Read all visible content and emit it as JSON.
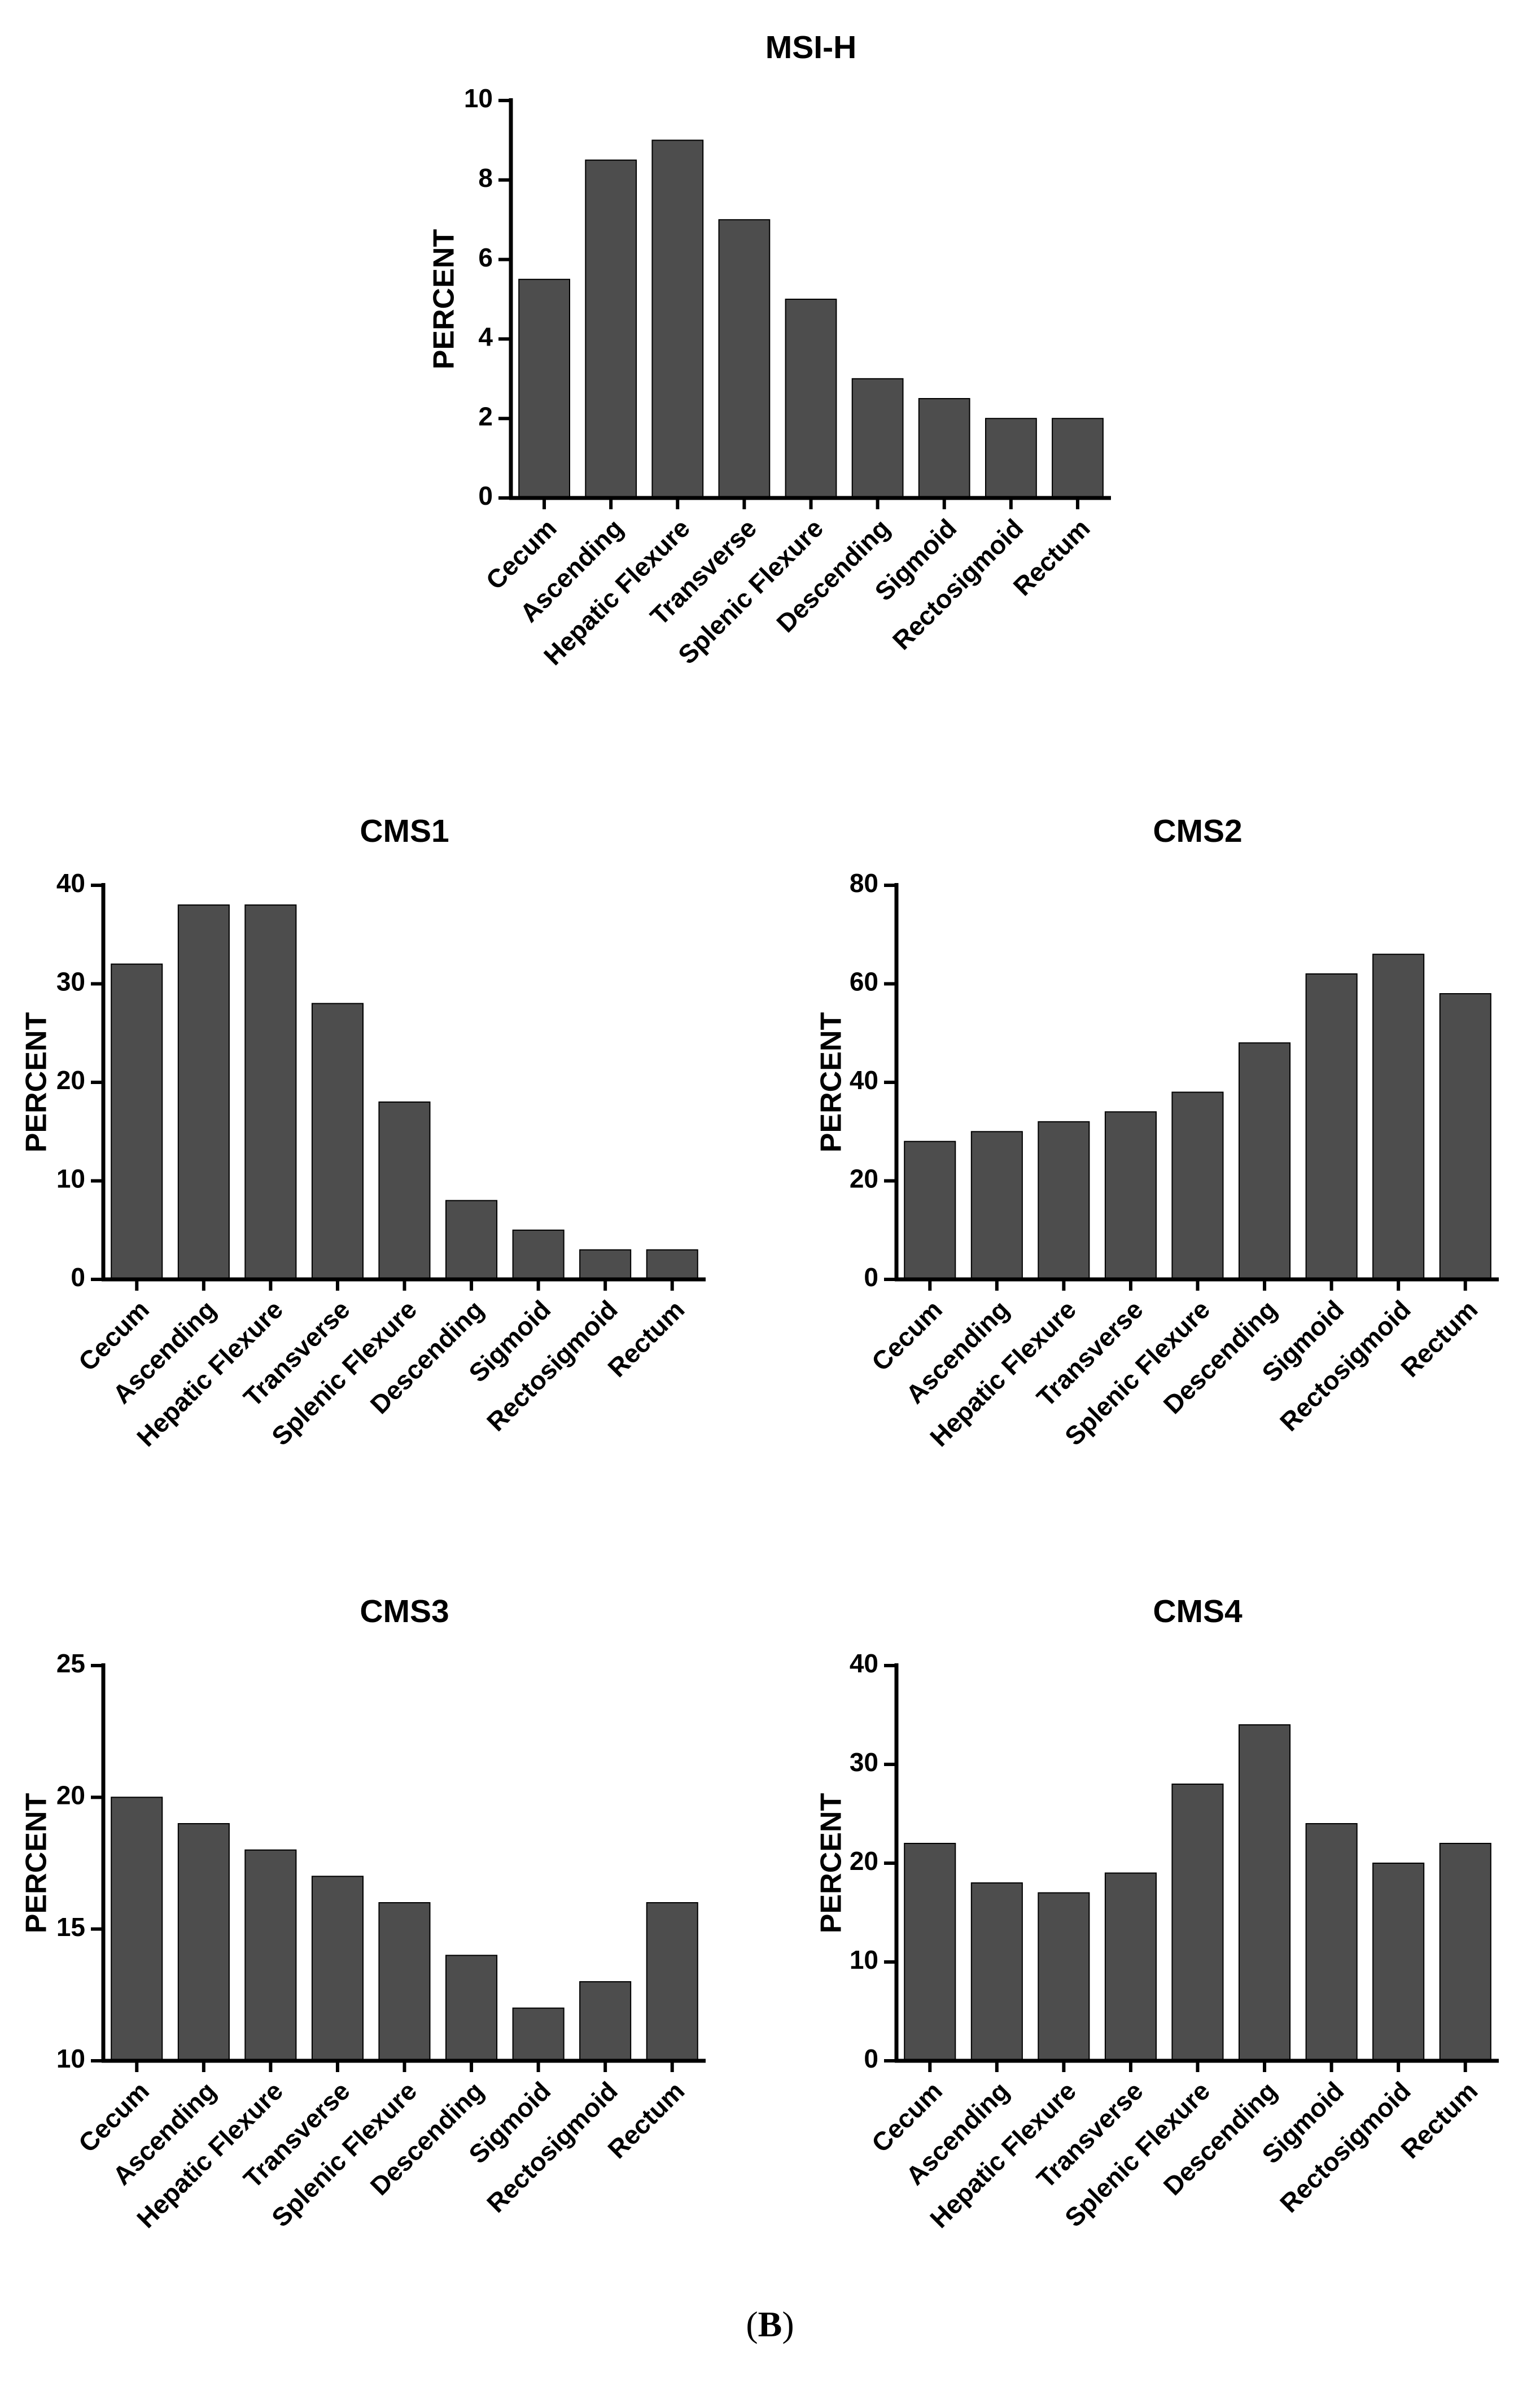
{
  "panel_caption": {
    "open": "(",
    "letter": "B",
    "close": ")"
  },
  "colors": {
    "bar_fill": "#4d4d4d",
    "axis": "#000000",
    "background": "#ffffff"
  },
  "chart_data": [
    {
      "type": "bar",
      "title": "MSI-H",
      "xlabel": "",
      "ylabel": "PERCENT",
      "ylim": [
        0,
        10
      ],
      "yticks": [
        "0",
        "2",
        "4",
        "6",
        "8",
        "10"
      ],
      "ytick_values": [
        0,
        2,
        4,
        6,
        8,
        10
      ],
      "categories": [
        "Cecum",
        "Ascending",
        "Hepatic Flexure",
        "Transverse",
        "Splenic Flexure",
        "Descending",
        "Sigmoid",
        "Rectosigmoid",
        "Rectum"
      ],
      "values": [
        5.5,
        8.5,
        9.0,
        7.0,
        5.0,
        3.0,
        2.5,
        2.0,
        2.0
      ],
      "grid": false,
      "legend": "none"
    },
    {
      "type": "bar",
      "title": "CMS1",
      "xlabel": "",
      "ylabel": "PERCENT",
      "ylim": [
        0,
        40
      ],
      "yticks": [
        "0",
        "10",
        "20",
        "30",
        "40"
      ],
      "ytick_values": [
        0,
        10,
        20,
        30,
        40
      ],
      "categories": [
        "Cecum",
        "Ascending",
        "Hepatic Flexure",
        "Transverse",
        "Splenic Flexure",
        "Descending",
        "Sigmoid",
        "Rectosigmoid",
        "Rectum"
      ],
      "values": [
        32,
        38,
        38,
        28,
        18,
        8,
        5,
        3,
        3
      ],
      "grid": false,
      "legend": "none"
    },
    {
      "type": "bar",
      "title": "CMS2",
      "xlabel": "",
      "ylabel": "PERCENT",
      "ylim": [
        0,
        80
      ],
      "yticks": [
        "0",
        "20",
        "40",
        "60",
        "80"
      ],
      "ytick_values": [
        0,
        20,
        40,
        60,
        80
      ],
      "categories": [
        "Cecum",
        "Ascending",
        "Hepatic Flexure",
        "Transverse",
        "Splenic Flexure",
        "Descending",
        "Sigmoid",
        "Rectosigmoid",
        "Rectum"
      ],
      "values": [
        28,
        30,
        32,
        34,
        38,
        48,
        62,
        66,
        58
      ],
      "grid": false,
      "legend": "none"
    },
    {
      "type": "bar",
      "title": "CMS3",
      "xlabel": "",
      "ylabel": "PERCENT",
      "ylim": [
        10,
        25
      ],
      "yticks": [
        "10",
        "15",
        "20",
        "25"
      ],
      "ytick_values": [
        10,
        15,
        20,
        25
      ],
      "categories": [
        "Cecum",
        "Ascending",
        "Hepatic Flexure",
        "Transverse",
        "Splenic Flexure",
        "Descending",
        "Sigmoid",
        "Rectosigmoid",
        "Rectum"
      ],
      "values": [
        20,
        19,
        18,
        17,
        16,
        14,
        12,
        13,
        16
      ],
      "grid": false,
      "legend": "none"
    },
    {
      "type": "bar",
      "title": "CMS4",
      "xlabel": "",
      "ylabel": "PERCENT",
      "ylim": [
        0,
        40
      ],
      "yticks": [
        "0",
        "10",
        "20",
        "30",
        "40"
      ],
      "ytick_values": [
        0,
        10,
        20,
        30,
        40
      ],
      "categories": [
        "Cecum",
        "Ascending",
        "Hepatic Flexure",
        "Transverse",
        "Splenic Flexure",
        "Descending",
        "Sigmoid",
        "Rectosigmoid",
        "Rectum"
      ],
      "values": [
        22,
        18,
        17,
        19,
        28,
        34,
        24,
        20,
        22
      ],
      "grid": false,
      "legend": "none"
    }
  ]
}
